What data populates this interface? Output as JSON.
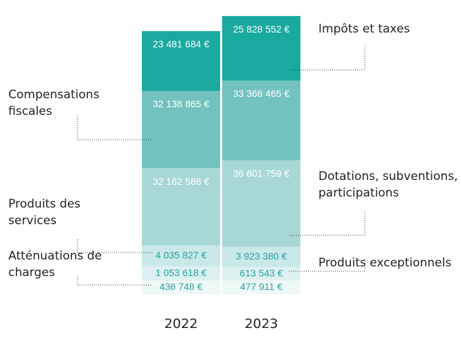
{
  "chart_data": {
    "type": "stacked_bar",
    "categories": [
      "2022",
      "2023"
    ],
    "series": [
      {
        "name": "Atténuations de charges",
        "color": "#eef8f7",
        "values": [
          436748,
          477911
        ],
        "value_labels": [
          "436 748 €",
          "477 911 €"
        ]
      },
      {
        "name": "Produits exceptionnels",
        "color": "#ddf1f0",
        "values": [
          1053618,
          613543
        ],
        "value_labels": [
          "1 053 618 €",
          "613 543 €"
        ]
      },
      {
        "name": "Produits des services",
        "color": "#c9e8e7",
        "values": [
          4035827,
          3923380
        ],
        "value_labels": [
          "4 035 827 €",
          "3 923 380 €"
        ]
      },
      {
        "name": "Dotations, subventions, participations",
        "color": "#a7d8d6",
        "values": [
          32162588,
          36601759
        ],
        "value_labels": [
          "32 162 588 €",
          "36 601 759 €"
        ]
      },
      {
        "name": "Compensations fiscales",
        "color": "#72c2c0",
        "values": [
          32138865,
          33366465
        ],
        "value_labels": [
          "32 138 865 €",
          "33 366 465 €"
        ]
      },
      {
        "name": "Impôts et taxes",
        "color": "#1aa99f",
        "values": [
          23481684,
          25828552
        ],
        "value_labels": [
          "23 481 684 €",
          "25 828 552 €"
        ]
      }
    ]
  }
}
